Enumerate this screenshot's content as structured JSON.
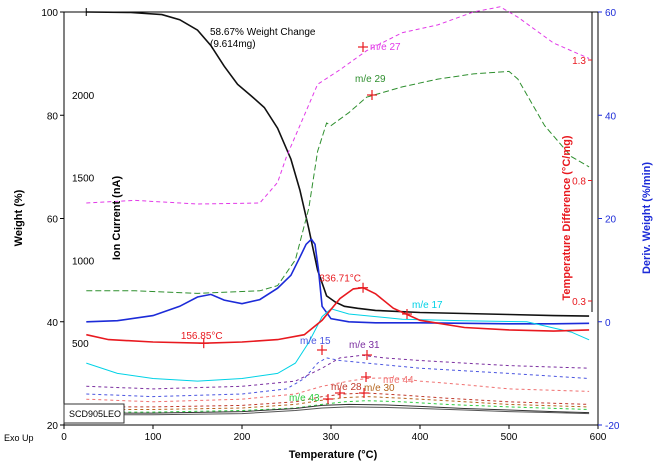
{
  "chart_data": {
    "type": "line",
    "xlabel": "Temperature (°C)",
    "xlim": [
      0,
      600
    ],
    "x_ticks": [
      "0",
      "100",
      "200",
      "300",
      "400",
      "500",
      "600"
    ],
    "axes": {
      "weight": {
        "label": "Weight (%)",
        "ylim": [
          20,
          100
        ],
        "ticks": [
          "20",
          "40",
          "60",
          "80",
          "100"
        ],
        "color": "#000000"
      },
      "ion_current": {
        "label": "Ion Current (nA)",
        "ticks": [
          "500",
          "1000",
          "1500",
          "2000"
        ],
        "color": "#000000"
      },
      "temp_diff": {
        "label": "Temperature Difference (°C/mg)",
        "ticks": [
          "0.3",
          "0.8",
          "1.3"
        ],
        "color": "#e8191f"
      },
      "deriv_weight": {
        "label": "Deriv. Weight (%/min)",
        "ylim": [
          -20,
          60
        ],
        "ticks": [
          "-20",
          "0",
          "20",
          "40",
          "60"
        ],
        "color": "#1c2bd8"
      }
    },
    "series": [
      {
        "key": "weight",
        "color": "#111111",
        "axis": "weight",
        "dash": "",
        "x": [
          25,
          75,
          110,
          130,
          150,
          165,
          180,
          195,
          210,
          225,
          240,
          255,
          265,
          275,
          285,
          295,
          305,
          315,
          330,
          350,
          400,
          450,
          500,
          550,
          590
        ],
        "y": [
          100,
          99.9,
          99.5,
          98.5,
          96.5,
          93.5,
          89.5,
          86,
          83.8,
          81.5,
          77.5,
          71.5,
          65.5,
          58,
          50,
          45,
          43.8,
          43,
          42.6,
          42.2,
          41.8,
          41.6,
          41.4,
          41.2,
          41.1
        ]
      },
      {
        "key": "deriv",
        "color": "#1c2bd8",
        "axis": "deriv_weight",
        "dash": "",
        "x": [
          25,
          60,
          100,
          130,
          150,
          165,
          180,
          200,
          220,
          240,
          255,
          265,
          272,
          278,
          282,
          286,
          290,
          300,
          320,
          350,
          400,
          450,
          500,
          550,
          590
        ],
        "y": [
          0,
          0.2,
          1.2,
          3,
          4.8,
          5.3,
          4.2,
          3.5,
          4.3,
          6.5,
          9,
          12.5,
          15,
          16,
          15,
          10,
          3,
          0.6,
          0,
          -0.2,
          -0.2,
          -0.3,
          -0.4,
          -0.4,
          -0.3
        ]
      },
      {
        "name": "m/e 27",
        "color": "#e23ae8",
        "axis": "weight",
        "dash": "4,3",
        "x": [
          25,
          80,
          150,
          220,
          240,
          250,
          270,
          285,
          310,
          340,
          380,
          420,
          460,
          490,
          510,
          550,
          590
        ],
        "y": [
          63,
          63.5,
          62.8,
          63,
          67,
          72,
          80,
          86,
          88.8,
          92.5,
          96,
          97.5,
          100,
          101,
          99,
          94,
          91
        ]
      },
      {
        "name": "m/e 29",
        "color": "#2f8f2f",
        "axis": "weight",
        "dash": "6,3",
        "x": [
          25,
          80,
          150,
          220,
          240,
          260,
          275,
          285,
          295,
          300,
          320,
          340,
          380,
          420,
          460,
          500,
          510,
          540,
          570,
          590
        ],
        "y": [
          46,
          46,
          45.5,
          46,
          47,
          52,
          62,
          73,
          78.5,
          78,
          80.5,
          83.5,
          85.5,
          87,
          88,
          88.5,
          87,
          78,
          72,
          70
        ]
      },
      {
        "name": "m/e 17",
        "color": "#00d2e6",
        "axis": "weight",
        "dash": "",
        "x": [
          25,
          60,
          100,
          150,
          200,
          240,
          260,
          275,
          290,
          300,
          320,
          380,
          450,
          520,
          570,
          590
        ],
        "y": [
          32,
          30,
          29,
          28.5,
          29,
          30,
          32,
          36,
          41,
          42.5,
          41.5,
          40.5,
          40.2,
          40,
          38,
          36.5
        ]
      },
      {
        "name": "Temperature Difference",
        "color": "#e8191f",
        "axis": "temp_diff",
        "dash": "",
        "x": [
          25,
          50,
          100,
          157,
          200,
          240,
          270,
          290,
          310,
          325,
          336,
          350,
          370,
          400,
          450,
          500,
          550,
          590
        ],
        "y": [
          0.16,
          0.14,
          0.13,
          0.125,
          0.13,
          0.14,
          0.16,
          0.22,
          0.31,
          0.35,
          0.355,
          0.33,
          0.27,
          0.22,
          0.19,
          0.18,
          0.175,
          0.18
        ]
      },
      {
        "name": "m/e 15",
        "color": "#4a55e0",
        "axis": "weight",
        "dash": "3,3",
        "x": [
          25,
          100,
          200,
          250,
          270,
          285,
          295,
          310,
          340,
          400,
          500,
          590
        ],
        "y": [
          26,
          25.5,
          26,
          27,
          29,
          32,
          33,
          32.5,
          32,
          31,
          30,
          29
        ]
      },
      {
        "name": "m/e 31",
        "color": "#7b2fa0",
        "axis": "weight",
        "dash": "3,3",
        "x": [
          25,
          100,
          200,
          260,
          290,
          310,
          335,
          360,
          400,
          450,
          500,
          590
        ],
        "y": [
          27.5,
          27,
          27.5,
          28.5,
          31,
          33,
          33.5,
          33,
          32.5,
          32,
          31.5,
          31
        ]
      },
      {
        "name": "m/e 44",
        "color": "#f07070",
        "axis": "weight",
        "dash": "3,3",
        "x": [
          25,
          100,
          200,
          260,
          290,
          320,
          340,
          370,
          400,
          450,
          500,
          590
        ],
        "y": [
          25,
          24.5,
          25,
          26,
          27.5,
          28.5,
          29,
          29.2,
          28.5,
          27.8,
          27,
          26.5
        ]
      },
      {
        "name": "m/e 28",
        "color": "#c0392b",
        "axis": "weight",
        "dash": "3,3",
        "x": [
          25,
          100,
          200,
          260,
          290,
          315,
          340,
          380,
          430,
          500,
          590
        ],
        "y": [
          23.5,
          23.5,
          23.8,
          24.5,
          25.5,
          26,
          26.2,
          25.8,
          25.2,
          24.5,
          24
        ]
      },
      {
        "name": "m/e 30",
        "color": "#b5651d",
        "axis": "weight",
        "dash": "3,3",
        "x": [
          25,
          100,
          200,
          260,
          290,
          315,
          340,
          380,
          430,
          500,
          590
        ],
        "y": [
          23,
          23,
          23.3,
          24,
          24.8,
          25.3,
          25.5,
          25.2,
          24.7,
          24,
          23.5
        ]
      },
      {
        "name": "m/e 43",
        "color": "#2ecc40",
        "axis": "weight",
        "dash": "3,3",
        "x": [
          25,
          100,
          200,
          260,
          290,
          315,
          340,
          380,
          430,
          500,
          590
        ],
        "y": [
          22.5,
          22.5,
          22.8,
          23.3,
          24,
          24.5,
          24.7,
          24.5,
          24,
          23.5,
          23
        ]
      },
      {
        "key": "baseline1",
        "color": "#333333",
        "axis": "weight",
        "dash": "",
        "x": [
          25,
          100,
          200,
          260,
          290,
          320,
          360,
          400,
          450,
          500,
          550,
          590
        ],
        "y": [
          22.3,
          22.3,
          22.6,
          23.2,
          23.8,
          24,
          23.9,
          23.6,
          23.2,
          22.9,
          22.6,
          22.4
        ]
      },
      {
        "key": "baseline2",
        "color": "#555555",
        "axis": "weight",
        "dash": "",
        "x": [
          25,
          100,
          200,
          260,
          290,
          320,
          360,
          400,
          450,
          500,
          550,
          590
        ],
        "y": [
          22,
          22,
          22.2,
          22.8,
          23.3,
          23.5,
          23.4,
          23.2,
          22.9,
          22.6,
          22.4,
          22.2
        ]
      }
    ],
    "annotations": {
      "weight_change": {
        "line1": "58.67% Weight Change",
        "line2": "(9.614mg)",
        "x": 160,
        "y": 97
      },
      "peak": {
        "label": "336.71°C",
        "x": 336,
        "y": 40.8,
        "series": "Temperature Difference"
      },
      "onset": {
        "label": "156.85°C",
        "x": 157,
        "y": 27.1
      }
    },
    "sample_label": "SCD905LEO",
    "exo_label": "Exo Up"
  }
}
